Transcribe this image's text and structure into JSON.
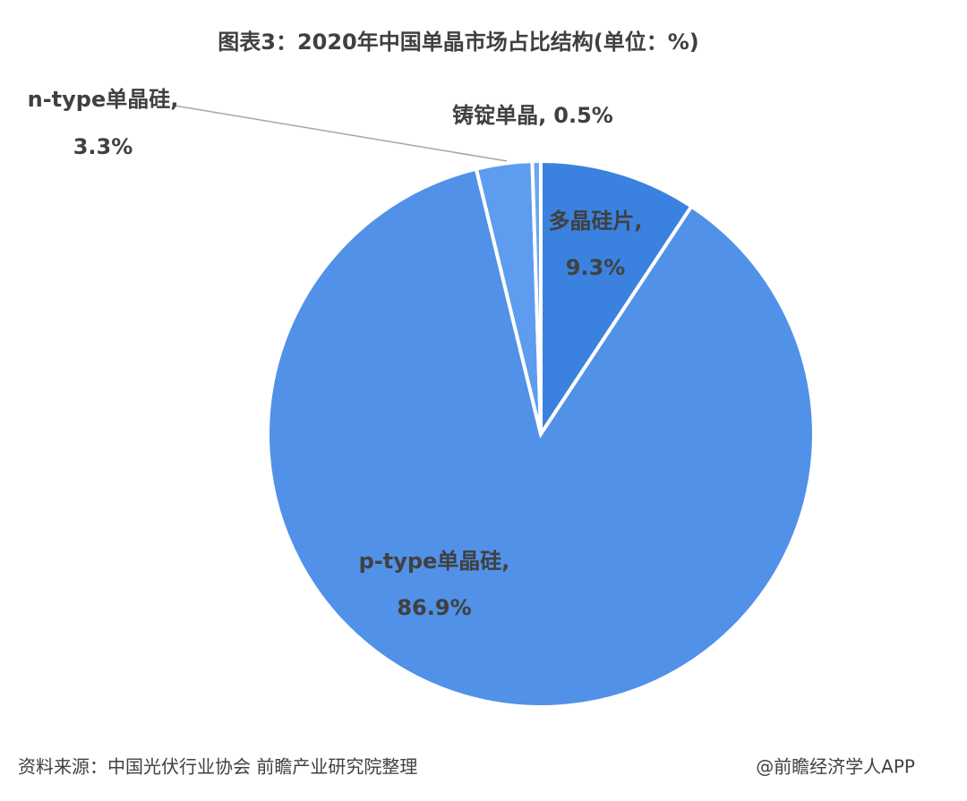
{
  "chart_data": {
    "type": "pie",
    "title": "图表3：2020年中国单晶市场占比结构(单位：%)",
    "categories": [
      "多晶硅片,",
      "p-type单晶硅,",
      "n-type单晶硅,",
      "铸锭单晶,"
    ],
    "values": [
      9.3,
      86.9,
      3.3,
      0.5
    ],
    "value_labels": [
      "9.3%",
      "86.9%",
      "3.3%",
      "0.5%"
    ],
    "colors": [
      "#3b82e0",
      "#5191e8",
      "#5d9cef",
      "#6aa6f2"
    ],
    "source": "资料来源：中国光伏行业协会 前瞻产业研究院整理",
    "credit": "@前瞻经济学人APP"
  }
}
